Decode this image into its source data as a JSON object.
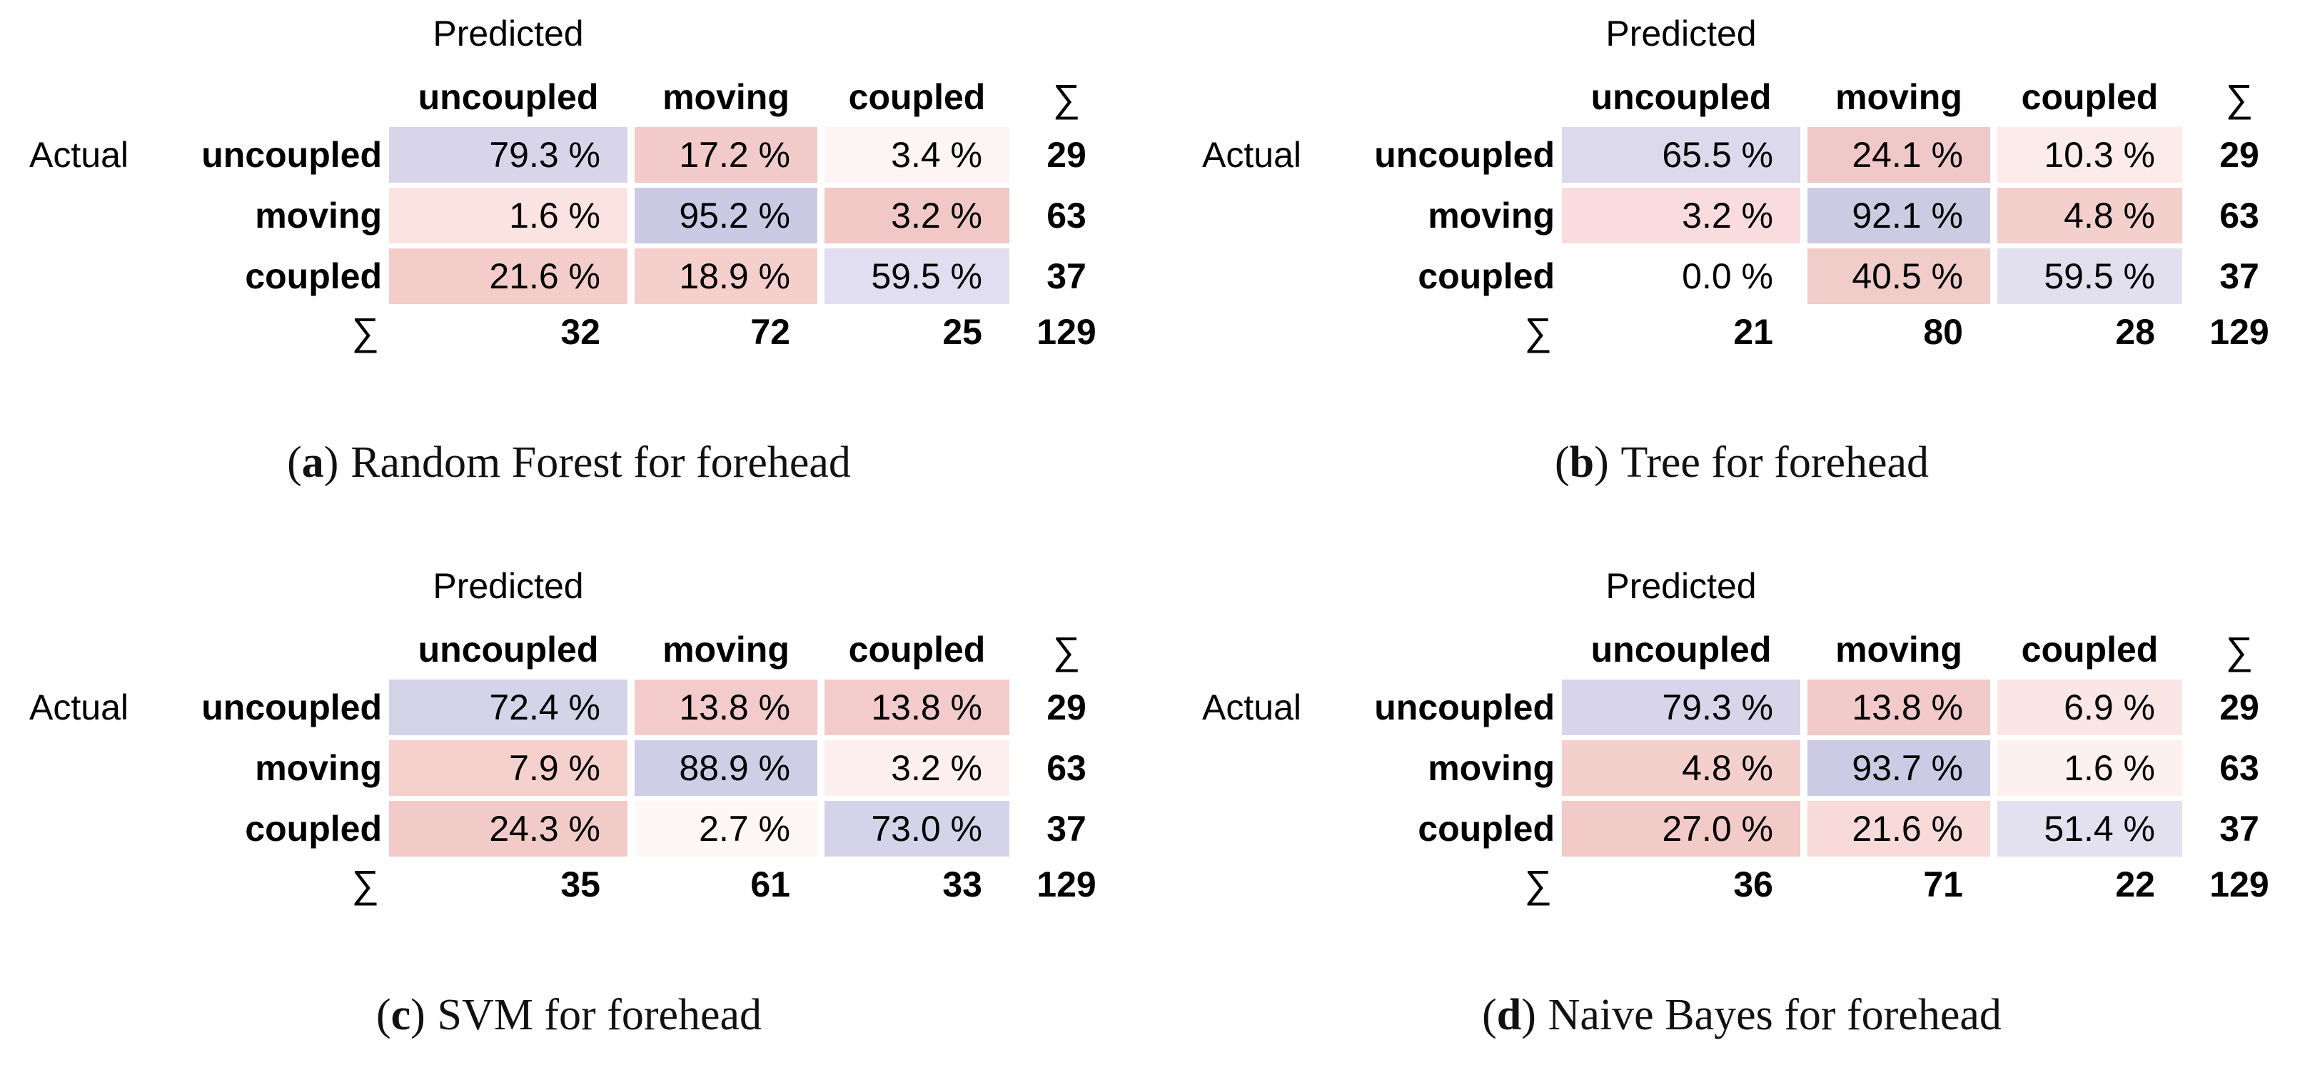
{
  "figure": {
    "background": "#ffffff",
    "diag_color_strong": "#cbc9e4",
    "error_color_strong": "#f2c8c6"
  },
  "labels": {
    "predicted": "Predicted",
    "actual": "Actual",
    "sum_symbol": "∑"
  },
  "matrices": [
    {
      "predicted": "Predicted",
      "actual": "Actual",
      "sum_symbol": "∑",
      "headers": [
        "uncoupled",
        "moving",
        "coupled"
      ],
      "rows": [
        {
          "label": "uncoupled",
          "c0": "79.3 %",
          "bg0": "#d8d5ea",
          "c1": "17.2 %",
          "bg1": "#f2caca",
          "c2": "3.4 %",
          "bg2": "#fdf4f5",
          "sum": "29"
        },
        {
          "label": "moving",
          "c0": "1.6 %",
          "bg0": "#fae3e1",
          "c1": "95.2 %",
          "bg1": "#cbc9e4",
          "c2": "3.2 %",
          "bg2": "#f2c8c6",
          "sum": "63"
        },
        {
          "label": "coupled",
          "c0": "21.6 %",
          "bg0": "#f4cdca",
          "c1": "18.9 %",
          "bg1": "#f5cfcc",
          "c2": "59.5 %",
          "bg2": "#e0def0",
          "sum": "37"
        }
      ],
      "colsums": [
        "32",
        "72",
        "25"
      ],
      "total": "129",
      "caption": {
        "open": "(",
        "letter": "a",
        "close": ")",
        "text": "Random Forest for forehead"
      }
    },
    {
      "predicted": "Predicted",
      "actual": "Actual",
      "sum_symbol": "∑",
      "headers": [
        "uncoupled",
        "moving",
        "coupled"
      ],
      "rows": [
        {
          "label": "uncoupled",
          "c0": "65.5 %",
          "bg0": "#dcd9ec",
          "c1": "24.1 %",
          "bg1": "#f1c8c8",
          "c2": "10.3 %",
          "bg2": "#fbeceb",
          "sum": "29"
        },
        {
          "label": "moving",
          "c0": "3.2 %",
          "bg0": "#fadcde",
          "c1": "92.1 %",
          "bg1": "#cdcbe4",
          "c2": "4.8 %",
          "bg2": "#f4d0cd",
          "sum": "63"
        },
        {
          "label": "coupled",
          "c0": "0.0 %",
          "bg0": "#ffffff",
          "c1": "40.5 %",
          "bg1": "#f0cdc8",
          "c2": "59.5 %",
          "bg2": "#e2e0ef",
          "sum": "37"
        }
      ],
      "colsums": [
        "21",
        "80",
        "28"
      ],
      "total": "129",
      "caption": {
        "open": "(",
        "letter": "b",
        "close": ")",
        "text": "Tree for forehead"
      }
    },
    {
      "predicted": "Predicted",
      "actual": "Actual",
      "sum_symbol": "∑",
      "headers": [
        "uncoupled",
        "moving",
        "coupled"
      ],
      "rows": [
        {
          "label": "uncoupled",
          "c0": "72.4 %",
          "bg0": "#d5d3e8",
          "c1": "13.8 %",
          "bg1": "#f2cbca",
          "c2": "13.8 %",
          "bg2": "#f2cbca",
          "sum": "29"
        },
        {
          "label": "moving",
          "c0": "7.9 %",
          "bg0": "#f5d0cd",
          "c1": "88.9 %",
          "bg1": "#d0cee6",
          "c2": "3.2 %",
          "bg2": "#fdf0ee",
          "sum": "63"
        },
        {
          "label": "coupled",
          "c0": "24.3 %",
          "bg0": "#f2cbc9",
          "c1": "2.7 %",
          "bg1": "#fdf7f5",
          "c2": "73.0 %",
          "bg2": "#d5d3e9",
          "sum": "37"
        }
      ],
      "colsums": [
        "35",
        "61",
        "33"
      ],
      "total": "129",
      "caption": {
        "open": "(",
        "letter": "c",
        "close": ")",
        "text": "SVM for forehead"
      }
    },
    {
      "predicted": "Predicted",
      "actual": "Actual",
      "sum_symbol": "∑",
      "headers": [
        "uncoupled",
        "moving",
        "coupled"
      ],
      "rows": [
        {
          "label": "uncoupled",
          "c0": "79.3 %",
          "bg0": "#d8d5ea",
          "c1": "13.8 %",
          "bg1": "#f2caca",
          "c2": "6.9 %",
          "bg2": "#fae7e5",
          "sum": "29"
        },
        {
          "label": "moving",
          "c0": "4.8 %",
          "bg0": "#f4d0cd",
          "c1": "93.7 %",
          "bg1": "#cccae4",
          "c2": "1.6 %",
          "bg2": "#fdf1ef",
          "sum": "63"
        },
        {
          "label": "coupled",
          "c0": "27.0 %",
          "bg0": "#f2cac7",
          "c1": "21.6 %",
          "bg1": "#f8dad8",
          "c2": "51.4 %",
          "bg2": "#e3e1f0",
          "sum": "37"
        }
      ],
      "colsums": [
        "36",
        "71",
        "22"
      ],
      "total": "129",
      "caption": {
        "open": "(",
        "letter": "d",
        "close": ")",
        "text": "Naive Bayes for forehead"
      }
    }
  ],
  "chart_data": [
    {
      "type": "heatmap",
      "title": "(a) Random Forest for forehead",
      "x_axis_label": "Predicted",
      "y_axis_label": "Actual",
      "classes": [
        "uncoupled",
        "moving",
        "coupled"
      ],
      "percent_rows_actual_x_predicted": [
        [
          79.3,
          17.2,
          3.4
        ],
        [
          1.6,
          95.2,
          3.2
        ],
        [
          21.6,
          18.9,
          59.5
        ]
      ],
      "actual_totals": [
        29,
        63,
        37
      ],
      "predicted_totals": [
        32,
        72,
        25
      ],
      "overall_total": 129,
      "legend_position": "none",
      "grid": false
    },
    {
      "type": "heatmap",
      "title": "(b) Tree for forehead",
      "x_axis_label": "Predicted",
      "y_axis_label": "Actual",
      "classes": [
        "uncoupled",
        "moving",
        "coupled"
      ],
      "percent_rows_actual_x_predicted": [
        [
          65.5,
          24.1,
          10.3
        ],
        [
          3.2,
          92.1,
          4.8
        ],
        [
          0.0,
          40.5,
          59.5
        ]
      ],
      "actual_totals": [
        29,
        63,
        37
      ],
      "predicted_totals": [
        21,
        80,
        28
      ],
      "overall_total": 129,
      "legend_position": "none",
      "grid": false
    },
    {
      "type": "heatmap",
      "title": "(c) SVM for forehead",
      "x_axis_label": "Predicted",
      "y_axis_label": "Actual",
      "classes": [
        "uncoupled",
        "moving",
        "coupled"
      ],
      "percent_rows_actual_x_predicted": [
        [
          72.4,
          13.8,
          13.8
        ],
        [
          7.9,
          88.9,
          3.2
        ],
        [
          24.3,
          2.7,
          73.0
        ]
      ],
      "actual_totals": [
        29,
        63,
        37
      ],
      "predicted_totals": [
        35,
        61,
        33
      ],
      "overall_total": 129,
      "legend_position": "none",
      "grid": false
    },
    {
      "type": "heatmap",
      "title": "(d) Naive Bayes for forehead",
      "x_axis_label": "Predicted",
      "y_axis_label": "Actual",
      "classes": [
        "uncoupled",
        "moving",
        "coupled"
      ],
      "percent_rows_actual_x_predicted": [
        [
          79.3,
          13.8,
          6.9
        ],
        [
          4.8,
          93.7,
          1.6
        ],
        [
          27.0,
          21.6,
          51.4
        ]
      ],
      "actual_totals": [
        29,
        63,
        37
      ],
      "predicted_totals": [
        36,
        71,
        22
      ],
      "overall_total": 129,
      "legend_position": "none",
      "grid": false
    }
  ]
}
